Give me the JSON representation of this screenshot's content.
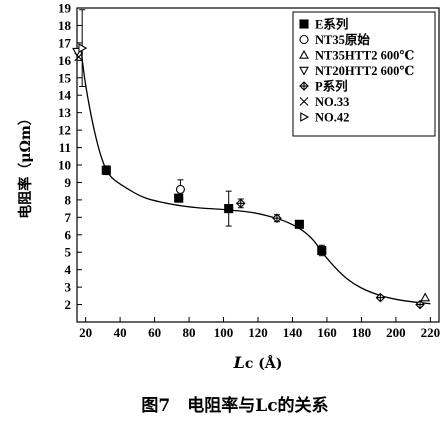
{
  "chart_data": {
    "type": "scatter",
    "xlabel": "Lc (Å)",
    "ylabel": "电阻率（μΩm）",
    "caption": "图7　电阻率与Lc的关系",
    "xlim": [
      15,
      225
    ],
    "ylim": [
      1,
      19
    ],
    "xticks": [
      20,
      40,
      60,
      80,
      100,
      120,
      140,
      160,
      180,
      200,
      220
    ],
    "yticks": [
      2,
      3,
      4,
      5,
      6,
      7,
      8,
      9,
      10,
      11,
      12,
      13,
      14,
      15,
      16,
      17,
      18,
      19
    ],
    "legend_position": "top-right",
    "series": [
      {
        "name": "E系列",
        "marker": "filled-square",
        "points": [
          {
            "x": 32,
            "y": 9.7
          },
          {
            "x": 74,
            "y": 8.1
          },
          {
            "x": 103,
            "y": 7.5
          },
          {
            "x": 144,
            "y": 6.6
          },
          {
            "x": 157,
            "y": 5.1
          }
        ],
        "errors": [
          0.25,
          0.2,
          1.0,
          0.2,
          0.3
        ]
      },
      {
        "name": "NT35原始",
        "marker": "open-circle",
        "points": [
          {
            "x": 75,
            "y": 8.6
          }
        ],
        "errors": [
          0.55
        ]
      },
      {
        "name": "NT35HTT2 600℃",
        "marker": "open-triangle-up",
        "points": [
          {
            "x": 217,
            "y": 2.4
          }
        ],
        "errors": [
          0
        ]
      },
      {
        "name": "NT20HTT2 600℃",
        "marker": "open-triangle-down",
        "points": [
          {
            "x": 15,
            "y": 16.5
          }
        ],
        "errors": [
          0
        ]
      },
      {
        "name": "P系列",
        "marker": "diamond",
        "points": [
          {
            "x": 110,
            "y": 7.8
          },
          {
            "x": 131,
            "y": 6.95
          },
          {
            "x": 191,
            "y": 2.4
          },
          {
            "x": 214,
            "y": 2.0
          }
        ],
        "errors": [
          0.25,
          0.2,
          0.1,
          0.1
        ]
      },
      {
        "name": "NO.33",
        "marker": "x",
        "points": [
          {
            "x": 16,
            "y": 16.2
          }
        ],
        "errors": [
          0
        ]
      },
      {
        "name": "NO.42",
        "marker": "triangle-right",
        "points": [
          {
            "x": 18,
            "y": 16.7
          }
        ],
        "errors": [
          2.2
        ]
      }
    ],
    "fit_curve": [
      {
        "x": 17,
        "y": 16.9
      },
      {
        "x": 20,
        "y": 14.6
      },
      {
        "x": 25,
        "y": 12.0
      },
      {
        "x": 30,
        "y": 10.2
      },
      {
        "x": 35,
        "y": 9.3
      },
      {
        "x": 45,
        "y": 8.6
      },
      {
        "x": 55,
        "y": 8.1
      },
      {
        "x": 70,
        "y": 7.75
      },
      {
        "x": 85,
        "y": 7.55
      },
      {
        "x": 100,
        "y": 7.45
      },
      {
        "x": 115,
        "y": 7.3
      },
      {
        "x": 125,
        "y": 7.1
      },
      {
        "x": 135,
        "y": 6.8
      },
      {
        "x": 145,
        "y": 6.3
      },
      {
        "x": 152,
        "y": 5.7
      },
      {
        "x": 158,
        "y": 4.9
      },
      {
        "x": 165,
        "y": 4.1
      },
      {
        "x": 172,
        "y": 3.45
      },
      {
        "x": 180,
        "y": 2.95
      },
      {
        "x": 190,
        "y": 2.55
      },
      {
        "x": 200,
        "y": 2.3
      },
      {
        "x": 210,
        "y": 2.15
      },
      {
        "x": 220,
        "y": 2.05
      }
    ]
  }
}
